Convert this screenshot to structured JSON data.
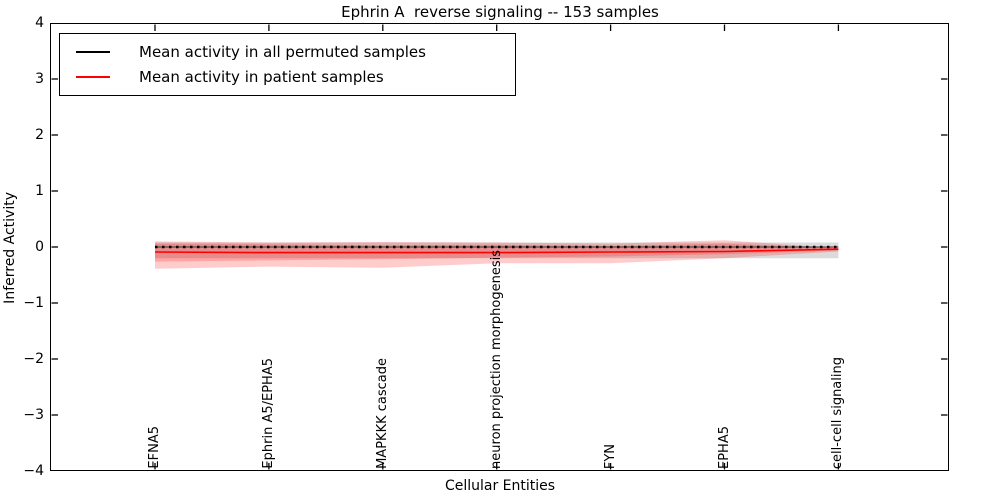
{
  "title": "Ephrin A  reverse signaling -- 153 samples",
  "axes": {
    "xlabel": "Cellular Entities",
    "ylabel": "Inferred Activity",
    "y_tick_labels": [
      "4",
      "3",
      "2",
      "1",
      "0",
      "−1",
      "−2",
      "−3",
      "−4"
    ],
    "y_tick_values": [
      4,
      3,
      2,
      1,
      0,
      -1,
      -2,
      -3,
      -4
    ]
  },
  "legend": {
    "items": [
      {
        "label": "Mean activity in all permuted samples",
        "color": "#000000"
      },
      {
        "label": "Mean activity in patient samples",
        "color": "#ff0000"
      }
    ]
  },
  "chart_data": {
    "type": "line",
    "title": "Ephrin A  reverse signaling -- 153 samples",
    "xlabel": "Cellular Entities",
    "ylabel": "Inferred Activity",
    "ylim": [
      -4,
      4
    ],
    "grid": false,
    "legend_position": "upper left",
    "categories": [
      "EFNA5",
      "Ephrin A5/EPHA5",
      "MAPKKK cascade",
      "neuron projection morphogenesis",
      "FYN",
      "EPHA5",
      "cell-cell signaling"
    ],
    "series": [
      {
        "name": "Mean activity in all permuted samples",
        "color": "#000000",
        "line_style": "solid with dotted overlay",
        "values": [
          0.0,
          0.0,
          0.0,
          0.0,
          0.0,
          0.0,
          0.0
        ],
        "band": {
          "label": "permuted samples spread",
          "color": "#999999",
          "opacity": 0.35,
          "upper": [
            0.08,
            0.08,
            0.08,
            0.08,
            0.08,
            0.08,
            0.08
          ],
          "lower": [
            -0.2,
            -0.2,
            -0.2,
            -0.2,
            -0.2,
            -0.2,
            -0.2
          ]
        }
      },
      {
        "name": "Mean activity in patient samples",
        "color": "#ff0000",
        "line_style": "solid",
        "values": [
          -0.09,
          -0.1,
          -0.1,
          -0.1,
          -0.09,
          -0.08,
          -0.04
        ],
        "band_outer": {
          "label": "patient samples outer spread",
          "color": "#ff0000",
          "opacity": 0.2,
          "upper": [
            0.1,
            0.08,
            0.09,
            0.08,
            0.06,
            0.12,
            -0.02
          ],
          "lower": [
            -0.39,
            -0.35,
            -0.37,
            -0.29,
            -0.29,
            -0.2,
            -0.08
          ]
        },
        "band_inner": {
          "label": "patient samples inner spread",
          "color": "#ff0000",
          "opacity": 0.2,
          "upper": [
            0.06,
            0.05,
            0.03,
            0.04,
            0.02,
            0.06,
            -0.02
          ],
          "lower": [
            -0.26,
            -0.24,
            -0.22,
            -0.19,
            -0.17,
            -0.13,
            -0.06
          ]
        }
      }
    ]
  }
}
